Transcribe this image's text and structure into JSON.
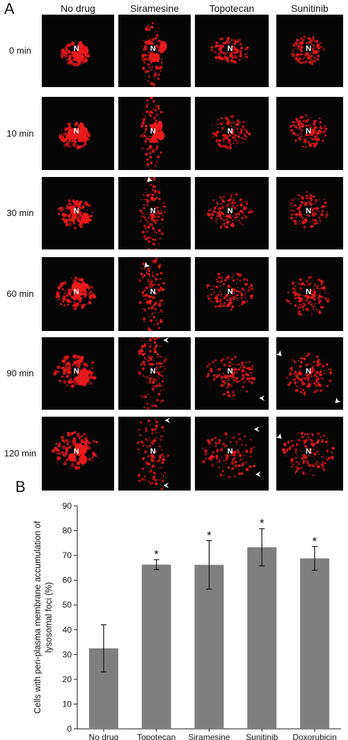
{
  "panel_a": {
    "letter": "A",
    "columns": [
      "No drug",
      "Siramesine",
      "Topotecan",
      "Sunitinib"
    ],
    "rows": [
      "0 min",
      "10 min",
      "30 min",
      "60 min",
      "90 min",
      "120 min"
    ],
    "nucleus_label": "N",
    "colors": {
      "background": "#050505",
      "lysosome": "#e8191c",
      "label": "#ffffff"
    }
  },
  "panel_b": {
    "letter": "B",
    "significance_marker": "*"
  },
  "chart_data": {
    "type": "bar",
    "categories": [
      "No drug",
      "Topotecan",
      "Siramesine",
      "Sunitinib",
      "Doxorubicin"
    ],
    "values": [
      32.5,
      66.3,
      66.2,
      73.3,
      68.8
    ],
    "errors": [
      9.5,
      2.0,
      9.8,
      7.5,
      4.8
    ],
    "significant": [
      false,
      true,
      true,
      true,
      true
    ],
    "ylabel_lines": [
      "Cells with peri-plasma membrane accumulation of",
      "lysosomal foci (%)"
    ],
    "xlabel": "",
    "ylim": [
      0,
      90
    ],
    "yticks": [
      0,
      10,
      20,
      30,
      40,
      50,
      60,
      70,
      80,
      90
    ],
    "bar_color": "#7f7f7f",
    "grid": false
  }
}
